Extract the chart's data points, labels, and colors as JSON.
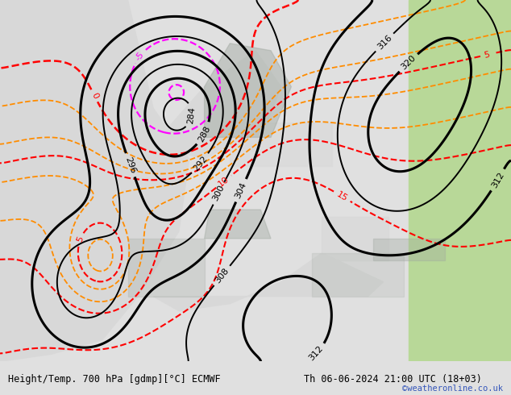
{
  "title_left": "Height/Temp. 700 hPa [gdmp][°C] ECMWF",
  "title_right": "Th 06-06-2024 21:00 UTC (18+03)",
  "watermark": "©weatheronline.co.uk",
  "bg_color_land": "#c8dca8",
  "bg_color_land2": "#b8d898",
  "bg_color_sea": "#d8d8d8",
  "bg_color_grey": "#c0c0c0",
  "bg_color_bottom": "#e8e8e8",
  "text_color_watermark": "#3355bb",
  "figsize": [
    6.34,
    4.9
  ],
  "dpi": 100,
  "lon_min": -35,
  "lon_max": 65,
  "lat_min": 27,
  "lat_max": 77
}
